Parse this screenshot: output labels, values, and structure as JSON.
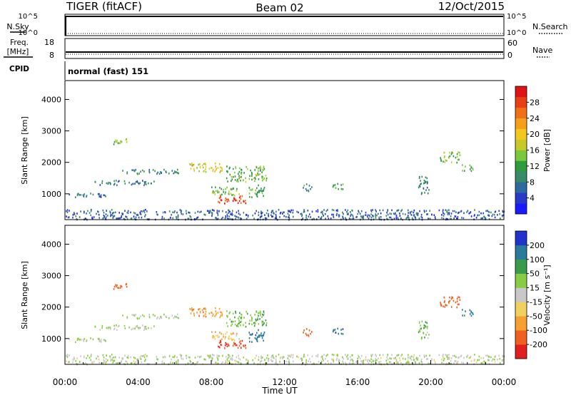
{
  "header": {
    "station": "TIGER (fitACF)",
    "beam": "Beam 02",
    "date": "12/Oct/2015"
  },
  "strip_panels": {
    "nsky": {
      "label": "N.Sky",
      "ticks": [
        "10^5",
        "10^0"
      ]
    },
    "nsearch": {
      "label": "N.Search",
      "ticks": [
        "10^5",
        "10^0"
      ]
    },
    "freq": {
      "label_line1": "Freq.",
      "label_line2": "[MHz]",
      "ticks": [
        "18",
        "8"
      ]
    },
    "nave": {
      "label": "Nave",
      "ticks": [
        "60",
        "0"
      ]
    },
    "cpid": {
      "label": "CPID",
      "value": "normal (fast) 151"
    }
  },
  "chart_data": [
    {
      "type": "heatmap",
      "name": "power",
      "ylabel": "Slant Range [km]",
      "y_ticks": [
        "1000",
        "2000",
        "3000",
        "4000"
      ],
      "y_tick_values": [
        1000,
        2000,
        3000,
        4000
      ],
      "ylim": [
        180,
        4600
      ],
      "xlim_hours": [
        0,
        24
      ],
      "colorbar": {
        "label": "Power [dB]",
        "range": [
          0,
          32
        ],
        "ticks": [
          "4",
          "8",
          "12",
          "16",
          "20",
          "24",
          "28"
        ],
        "tick_values": [
          4,
          8,
          12,
          16,
          20,
          24,
          28
        ],
        "colors": [
          "#1a1aff",
          "#2a3ac8",
          "#2e6a9e",
          "#3a8a6a",
          "#2f9a3e",
          "#7ac83c",
          "#c8c82a",
          "#f0c81e",
          "#f5a01a",
          "#f07018",
          "#e84016",
          "#dd1414"
        ]
      }
    },
    {
      "type": "heatmap",
      "name": "velocity",
      "ylabel": "Slant Range [km]",
      "y_ticks": [
        "1000",
        "2000",
        "3000",
        "4000"
      ],
      "y_tick_values": [
        1000,
        2000,
        3000,
        4000
      ],
      "ylim": [
        180,
        4600
      ],
      "xlim_hours": [
        0,
        24
      ],
      "colorbar": {
        "label": "Velocity [m s⁻¹]",
        "ticks": [
          "200",
          "100",
          "50",
          "15",
          "-15",
          "-50",
          "-100",
          "-200"
        ],
        "colors": [
          "#2233cc",
          "#2a7a9a",
          "#3a9a4a",
          "#88cc44",
          "#c8c8c8",
          "#f0d060",
          "#f5a030",
          "#f06020",
          "#e02020"
        ]
      }
    }
  ],
  "x_axis": {
    "label": "Time UT",
    "ticks": [
      "00:00",
      "04:00",
      "08:00",
      "12:00",
      "16:00",
      "20:00",
      "00:00"
    ],
    "tick_hours": [
      0,
      4,
      8,
      12,
      16,
      20,
      24
    ]
  },
  "echo_regions": [
    {
      "t0": 0.2,
      "t1": 2.2,
      "r0": 900,
      "r1": 1050,
      "pw": 7,
      "vel": 15
    },
    {
      "t0": 1.6,
      "t1": 5.0,
      "r0": 1300,
      "r1": 1450,
      "pw": 8,
      "vel": 15
    },
    {
      "t0": 3.0,
      "t1": 6.2,
      "r0": 1650,
      "r1": 1800,
      "pw": 9,
      "vel": 15
    },
    {
      "t0": 6.8,
      "t1": 8.6,
      "r0": 1700,
      "r1": 2000,
      "pw": 18,
      "vel": -80
    },
    {
      "t0": 8.8,
      "t1": 11.0,
      "r0": 1400,
      "r1": 1900,
      "pw": 13,
      "vel": 40
    },
    {
      "t0": 2.6,
      "t1": 3.4,
      "r0": 2580,
      "r1": 2780,
      "pw": 17,
      "vel": -120
    },
    {
      "t0": 8.0,
      "t1": 9.6,
      "r0": 960,
      "r1": 1240,
      "pw": 14,
      "vel": -40
    },
    {
      "t0": 8.3,
      "t1": 9.9,
      "r0": 720,
      "r1": 960,
      "pw": 29,
      "vel": -200
    },
    {
      "t0": 10.0,
      "t1": 10.9,
      "r0": 900,
      "r1": 1300,
      "pw": 12,
      "vel": 180
    },
    {
      "t0": 13.0,
      "t1": 13.5,
      "r0": 1100,
      "r1": 1350,
      "pw": 11,
      "vel": -130
    },
    {
      "t0": 14.6,
      "t1": 15.2,
      "r0": 1150,
      "r1": 1400,
      "pw": 12,
      "vel": 180
    },
    {
      "t0": 19.3,
      "t1": 19.9,
      "r0": 1000,
      "r1": 1600,
      "pw": 9,
      "vel": 40
    },
    {
      "t0": 20.5,
      "t1": 21.6,
      "r0": 2000,
      "r1": 2350,
      "pw": 15,
      "vel": -150
    },
    {
      "t0": 21.6,
      "t1": 22.3,
      "r0": 1750,
      "r1": 1950,
      "pw": 12,
      "vel": 120
    },
    {
      "t0": 0.0,
      "t1": 24.0,
      "r0": 200,
      "r1": 520,
      "pw": 6,
      "vel": 10
    }
  ]
}
